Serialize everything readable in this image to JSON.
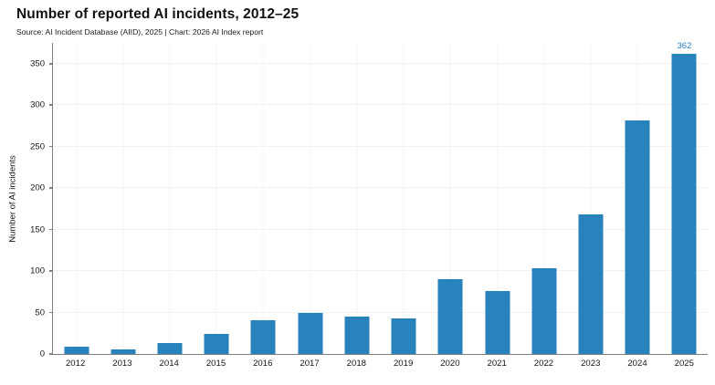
{
  "header": {
    "title": "Number of reported AI incidents, 2012–25",
    "subtitle": "Source: AI Incident Database (AIID), 2025 | Chart: 2026 AI Index report"
  },
  "chart_data": {
    "type": "bar",
    "title": "Number of reported AI incidents, 2012–25",
    "subtitle": "Source: AI Incident Database (AIID), 2025 | Chart: 2026 AI Index report",
    "categories": [
      "2012",
      "2013",
      "2014",
      "2015",
      "2016",
      "2017",
      "2018",
      "2019",
      "2020",
      "2021",
      "2022",
      "2023",
      "2024",
      "2025"
    ],
    "values": [
      9,
      6,
      13,
      24,
      41,
      50,
      45,
      43,
      90,
      76,
      103,
      168,
      282,
      362
    ],
    "xlabel": "",
    "ylabel": "Number of AI incidents",
    "ylim": [
      0,
      375
    ],
    "yticks": [
      0,
      50,
      100,
      150,
      200,
      250,
      300,
      350
    ],
    "grid": true,
    "legend_position": "none",
    "bar_color": "#2882bc",
    "axis_color": "#7e7e7e",
    "value_labels": {
      "2025": "362"
    }
  }
}
